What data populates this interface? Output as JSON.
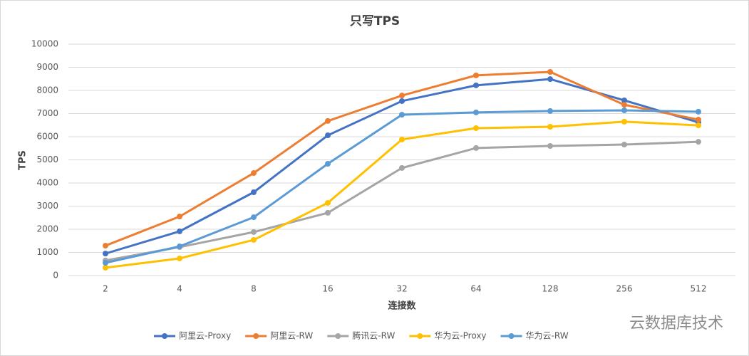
{
  "chart_data": {
    "type": "line",
    "title": "只写TPS",
    "x_label": "连接数",
    "y_label": "TPS",
    "categories": [
      "2",
      "4",
      "8",
      "16",
      "32",
      "64",
      "128",
      "256",
      "512"
    ],
    "series": [
      {
        "name": "阿里云-Proxy",
        "color": "#4472c4",
        "values": [
          950,
          1910,
          3600,
          6060,
          7540,
          8220,
          8490,
          7570,
          6620
        ]
      },
      {
        "name": "阿里云-RW",
        "color": "#ed7d31",
        "values": [
          1290,
          2550,
          4430,
          6680,
          7780,
          8650,
          8800,
          7380,
          6740
        ]
      },
      {
        "name": "腾讯云-RW",
        "color": "#a5a5a5",
        "values": [
          650,
          1230,
          1880,
          2710,
          4650,
          5510,
          5600,
          5660,
          5780
        ]
      },
      {
        "name": "华为云-Proxy",
        "color": "#ffc000",
        "values": [
          340,
          740,
          1540,
          3140,
          5880,
          6370,
          6430,
          6650,
          6490
        ]
      },
      {
        "name": "华为云-RW",
        "color": "#5b9bd5",
        "values": [
          550,
          1260,
          2520,
          4830,
          6950,
          7050,
          7110,
          7140,
          7080
        ]
      }
    ],
    "ylim": [
      0,
      10000
    ],
    "yticks": [
      0,
      1000,
      2000,
      3000,
      4000,
      5000,
      6000,
      7000,
      8000,
      9000,
      10000
    ],
    "grid": true,
    "legend": "bottom",
    "watermark": "云数据库技术"
  }
}
